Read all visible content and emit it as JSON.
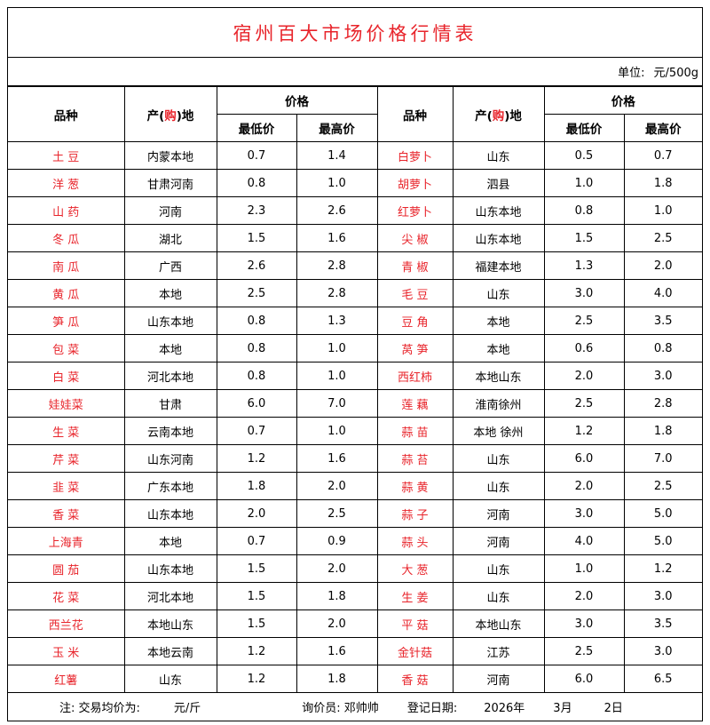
{
  "title": "宿州百大市场价格行情表",
  "unit": {
    "label": "单位:",
    "value": "元/500g"
  },
  "headers": {
    "variety": "品种",
    "origin_pre": "产(",
    "origin_mid": "购",
    "origin_post": ")地",
    "price": "价格",
    "min": "最低价",
    "max": "最高价"
  },
  "rows": [
    {
      "l": [
        "土 豆",
        "内蒙本地",
        "0.7",
        "1.4"
      ],
      "r": [
        "白萝卜",
        "山东",
        "0.5",
        "0.7"
      ]
    },
    {
      "l": [
        "洋 葱",
        "甘肃河南",
        "0.8",
        "1.0"
      ],
      "r": [
        "胡萝卜",
        "泗县",
        "1.0",
        "1.8"
      ]
    },
    {
      "l": [
        "山 药",
        "河南",
        "2.3",
        "2.6"
      ],
      "r": [
        "红萝卜",
        "山东本地",
        "0.8",
        "1.0"
      ]
    },
    {
      "l": [
        "冬 瓜",
        "湖北",
        "1.5",
        "1.6"
      ],
      "r": [
        "尖 椒",
        "山东本地",
        "1.5",
        "2.5"
      ]
    },
    {
      "l": [
        "南 瓜",
        "广西",
        "2.6",
        "2.8"
      ],
      "r": [
        "青 椒",
        "福建本地",
        "1.3",
        "2.0"
      ]
    },
    {
      "l": [
        "黄 瓜",
        "本地",
        "2.5",
        "2.8"
      ],
      "r": [
        "毛 豆",
        "山东",
        "3.0",
        "4.0"
      ]
    },
    {
      "l": [
        "笋 瓜",
        "山东本地",
        "0.8",
        "1.3"
      ],
      "r": [
        "豆 角",
        "本地",
        "2.5",
        "3.5"
      ]
    },
    {
      "l": [
        "包 菜",
        "本地",
        "0.8",
        "1.0"
      ],
      "r": [
        "莴 笋",
        "本地",
        "0.6",
        "0.8"
      ]
    },
    {
      "l": [
        "白 菜",
        "河北本地",
        "0.8",
        "1.0"
      ],
      "r": [
        "西红柿",
        "本地山东",
        "2.0",
        "3.0"
      ]
    },
    {
      "l": [
        "娃娃菜",
        "甘肃",
        "6.0",
        "7.0"
      ],
      "r": [
        "莲 藕",
        "淮南徐州",
        "2.5",
        "2.8"
      ]
    },
    {
      "l": [
        "生 菜",
        "云南本地",
        "0.7",
        "1.0"
      ],
      "r": [
        "蒜 苗",
        "本地 徐州",
        "1.2",
        "1.8"
      ]
    },
    {
      "l": [
        "芹 菜",
        "山东河南",
        "1.2",
        "1.6"
      ],
      "r": [
        "蒜 苔",
        "山东",
        "6.0",
        "7.0"
      ]
    },
    {
      "l": [
        "韭 菜",
        "广东本地",
        "1.8",
        "2.0"
      ],
      "r": [
        "蒜 黄",
        "山东",
        "2.0",
        "2.5"
      ]
    },
    {
      "l": [
        "香 菜",
        "山东本地",
        "2.0",
        "2.5"
      ],
      "r": [
        "蒜 子",
        "河南",
        "3.0",
        "5.0"
      ]
    },
    {
      "l": [
        "上海青",
        "本地",
        "0.7",
        "0.9"
      ],
      "r": [
        "蒜 头",
        "河南",
        "4.0",
        "5.0"
      ]
    },
    {
      "l": [
        "圆 茄",
        "山东本地",
        "1.5",
        "2.0"
      ],
      "r": [
        "大 葱",
        "山东",
        "1.0",
        "1.2"
      ]
    },
    {
      "l": [
        "花 菜",
        "河北本地",
        "1.5",
        "1.8"
      ],
      "r": [
        "生 姜",
        "山东",
        "2.0",
        "3.0"
      ]
    },
    {
      "l": [
        "西兰花",
        "本地山东",
        "1.5",
        "2.0"
      ],
      "r": [
        "平 菇",
        "本地山东",
        "3.0",
        "3.5"
      ]
    },
    {
      "l": [
        "玉 米",
        "本地云南",
        "1.2",
        "1.6"
      ],
      "r": [
        "金针菇",
        "江苏",
        "2.5",
        "3.0"
      ]
    },
    {
      "l": [
        "红薯",
        "山东",
        "1.2",
        "1.8"
      ],
      "r": [
        "香 菇",
        "河南",
        "6.0",
        "6.5"
      ]
    }
  ],
  "footer": {
    "note": "注: 交易均价为:",
    "note_unit": "元/斤",
    "inquirer": "询价员: 邓帅帅",
    "date_label": "登记日期:",
    "year": "2026年",
    "month": "3月",
    "day": "2日"
  },
  "colors": {
    "accent": "#e8242b"
  }
}
